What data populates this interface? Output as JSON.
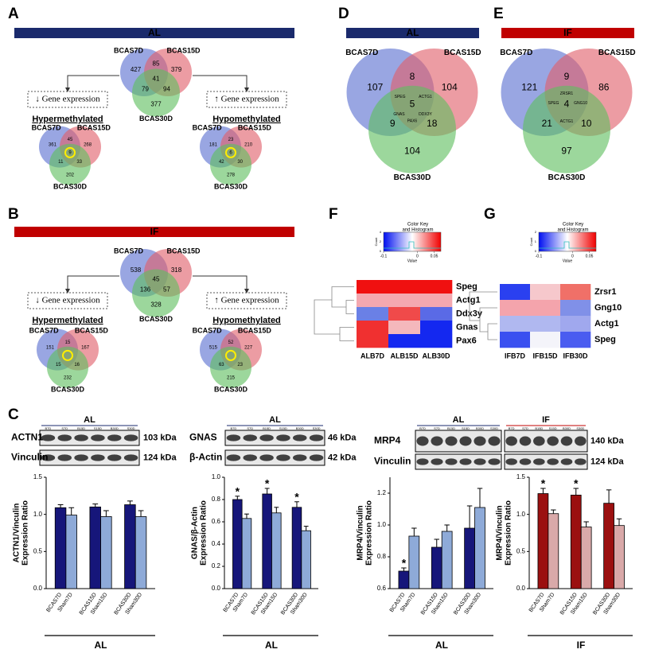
{
  "panel_labels": [
    "A",
    "B",
    "C",
    "D",
    "E",
    "F",
    "G"
  ],
  "headers": [
    {
      "text": "AL",
      "color": "#1a2a6c"
    },
    {
      "text": "IF",
      "color": "#c00000"
    },
    {
      "text": "AL",
      "color": "#1a2a6c"
    },
    {
      "text": "IF",
      "color": "#c00000"
    }
  ],
  "venn_colors": [
    "#5b6fd0",
    "#e0606a",
    "#5fbf5f"
  ],
  "highlight_color": "#ffee00",
  "venns": [
    {
      "sets": [
        "BCAS7D",
        "BCAS15D",
        "BCAS30D"
      ],
      "counts": [
        427,
        85,
        379,
        41,
        79,
        94,
        377
      ]
    },
    {
      "sets": [
        "BCAS7D",
        "BCAS15D",
        "BCAS30D"
      ],
      "counts": [
        361,
        45,
        268,
        9,
        11,
        33,
        202
      ],
      "highlight": true
    },
    {
      "sets": [
        "BCAS7D",
        "BCAS15D",
        "BCAS30D"
      ],
      "counts": [
        181,
        23,
        210,
        6,
        42,
        30,
        278
      ],
      "highlight": true
    },
    {
      "sets": [
        "BCAS7D",
        "BCAS15D",
        "BCAS30D"
      ],
      "counts": [
        538,
        null,
        318,
        45,
        136,
        57,
        328
      ]
    },
    {
      "sets": [
        "BCAS7D",
        "BCAS15D",
        "BCAS30D"
      ],
      "counts": [
        151,
        15,
        167,
        null,
        15,
        16,
        232
      ],
      "highlight": true
    },
    {
      "sets": [
        "BCAS7D",
        "BCAS15D",
        "BCAS30D"
      ],
      "counts": [
        515,
        52,
        227,
        null,
        63,
        23,
        215
      ],
      "highlight": true
    },
    {
      "sets": [
        "BCAS7D",
        "BCAS15D",
        "BCAS30D"
      ],
      "counts": [
        107,
        8,
        104,
        5,
        9,
        18,
        104
      ],
      "genes": [
        "SPEG",
        "ACTG1",
        "GNAS",
        "DDX3Y",
        "PAX6"
      ]
    },
    {
      "sets": [
        "BCAS7D",
        "BCAS15D",
        "BCAS30D"
      ],
      "counts": [
        121,
        9,
        86,
        4,
        21,
        10,
        97
      ],
      "genes": [
        "ZRSR1",
        "SPEG",
        "GNG10",
        "ACTG1"
      ]
    }
  ],
  "methylation": [
    {
      "box": "↓ Gene expression",
      "label": "Hypermethylated"
    },
    {
      "box": "↑ Gene expression",
      "label": "Hypomethylated"
    },
    {
      "box": "↓ Gene expression",
      "label": "Hypermethylated"
    },
    {
      "box": "↑ Gene expression",
      "label": "Hypomethylated"
    }
  ],
  "heatmaps": [
    {
      "key_title": [
        "Color Key",
        "and Histogram"
      ],
      "key_xticks": [
        -0.1,
        0,
        0.05
      ],
      "key_xlabel": "Value",
      "key_ylabel": "Count",
      "key_yticks": [
        0,
        2,
        4
      ],
      "rows": [
        "Speg",
        "Actg1",
        "Ddx3y",
        "Gnas",
        "Pax6"
      ],
      "columns": [
        "ALB7D",
        "ALB15D",
        "ALB30D"
      ],
      "cells": [
        [
          "#f01010",
          "#f01010",
          "#f01010"
        ],
        [
          "#f4a8b0",
          "#f4a8b0",
          "#f4a8b0"
        ],
        [
          "#6a80e6",
          "#f04a4a",
          "#5a6ae6"
        ],
        [
          "#f03030",
          "#f4b8bc",
          "#1428f0"
        ],
        [
          "#f03030",
          "#1428f0",
          "#1428f0"
        ]
      ]
    },
    {
      "key_title": [
        "Color Key",
        "and Histogram"
      ],
      "key_xticks": [
        -0.1,
        0,
        0.05
      ],
      "key_xlabel": "Value",
      "key_ylabel": "Count",
      "key_yticks": [
        0,
        1,
        2
      ],
      "rows": [
        "Zrsr1",
        "Gng10",
        "Actg1",
        "Speg"
      ],
      "columns": [
        "IFB7D",
        "IFB15D",
        "IFB30D"
      ],
      "cells": [
        [
          "#2a40f0",
          "#f6c8cc",
          "#f07068"
        ],
        [
          "#f4a4ac",
          "#f4a4ac",
          "#8090e8"
        ],
        [
          "#b0b8f0",
          "#b0b8f0",
          "#a0a8ee"
        ],
        [
          "#3a50f0",
          "#f4f4fa",
          "#4a5cf0"
        ]
      ]
    }
  ],
  "blots": [
    {
      "headers": [
        {
          "text": "AL",
          "color": "#1a2a6c"
        }
      ],
      "rows": [
        {
          "label": "ACTN1",
          "kda": "103 kDa"
        },
        {
          "label": "Vinculin",
          "kda": "124 kDa"
        }
      ],
      "lanes": [
        [
          "B7D",
          "S7D",
          "B15D",
          "S15D",
          "B30D",
          "S30D"
        ]
      ]
    },
    {
      "headers": [
        {
          "text": "AL",
          "color": "#1a2a6c"
        }
      ],
      "rows": [
        {
          "label": "GNAS",
          "kda": "46 kDa"
        },
        {
          "label": "β-Actin",
          "kda": "42 kDa"
        }
      ],
      "lanes": [
        [
          "B7D",
          "S7D",
          "B15D",
          "S15D",
          "B30D",
          "S30D"
        ]
      ]
    },
    {
      "headers": [
        {
          "text": "AL",
          "color": "#1a2a6c"
        },
        {
          "text": "IF",
          "color": "#c00000"
        }
      ],
      "rows": [
        {
          "label": "MRP4",
          "kda": "140 kDa"
        },
        {
          "label": "Vinculin",
          "kda": "124 kDa"
        }
      ],
      "lanes": [
        [
          "B7D",
          "S7D",
          "B15D",
          "S15D",
          "B30D",
          "S30D"
        ],
        [
          "B7D",
          "S7D",
          "B15D",
          "S15D",
          "B30D",
          "S30D"
        ]
      ]
    }
  ],
  "chart_data": [
    {
      "type": "bar",
      "ylabel": [
        "ACTN1/Vinculin",
        "Expression Ratio"
      ],
      "categories": [
        "BCAS7D",
        "Sham7D",
        "BCAS15D",
        "Sham15D",
        "BCAS30D",
        "Sham30D"
      ],
      "values": [
        1.09,
        0.99,
        1.1,
        0.97,
        1.13,
        0.97
      ],
      "errors": [
        0.04,
        0.1,
        0.04,
        0.08,
        0.05,
        0.08
      ],
      "colors": [
        "#16167a",
        "#8eaad8",
        "#16167a",
        "#8eaad8",
        "#16167a",
        "#8eaad8"
      ],
      "ylim": [
        0,
        1.5
      ],
      "yticks": [
        {
          "value": 0,
          "label": "0.0"
        },
        0.5,
        {
          "value": 1,
          "label": "1.0"
        },
        1.5
      ],
      "group_label": "AL",
      "group_color": "#1a2a6c",
      "annotations": []
    },
    {
      "type": "bar",
      "ylabel": [
        "GNAS/β-Actin",
        "Expression Ratio"
      ],
      "categories": [
        "BCAS7D",
        "Sham7D",
        "BCAS15D",
        "Sham15D",
        "BCAS30D",
        "Sham30D"
      ],
      "values": [
        0.8,
        0.63,
        0.85,
        0.68,
        0.73,
        0.52
      ],
      "errors": [
        0.03,
        0.04,
        0.05,
        0.05,
        0.05,
        0.04
      ],
      "colors": [
        "#16167a",
        "#8eaad8",
        "#16167a",
        "#8eaad8",
        "#16167a",
        "#8eaad8"
      ],
      "ylim": [
        0,
        1
      ],
      "yticks": [
        {
          "value": 0,
          "label": "0.0"
        },
        0.2,
        0.4,
        0.6,
        0.8,
        {
          "value": 1,
          "label": "1.0"
        }
      ],
      "group_label": "AL",
      "group_color": "#1a2a6c",
      "annotations": [
        {
          "text": "*",
          "category": "BCAS7D"
        },
        {
          "text": "*",
          "category": "BCAS15D"
        },
        {
          "text": "*",
          "category": "BCAS30D"
        }
      ]
    },
    {
      "type": "bar",
      "ylabel": [
        "MRP4/Vinculin",
        "Expression Ratio"
      ],
      "categories": [
        "BCAS7D",
        "Sham7D",
        "BCAS15D",
        "Sham15D",
        "BCAS30D",
        "Sham30D"
      ],
      "values": [
        0.71,
        0.93,
        0.86,
        0.96,
        0.98,
        1.11
      ],
      "errors": [
        0.02,
        0.05,
        0.05,
        0.04,
        0.14,
        0.12
      ],
      "colors": [
        "#16167a",
        "#8eaad8",
        "#16167a",
        "#8eaad8",
        "#16167a",
        "#8eaad8"
      ],
      "ylim": [
        0.6,
        1.3
      ],
      "yticks": [
        0.6,
        0.8,
        {
          "value": 1,
          "label": "1.0"
        },
        1.2
      ],
      "group_label": "AL",
      "group_color": "#1a2a6c",
      "annotations": [
        {
          "text": "*",
          "category": "BCAS7D"
        }
      ]
    },
    {
      "type": "bar",
      "ylabel": [
        "MRP4/Vinculin",
        "Expression Ratio"
      ],
      "categories": [
        "BCAS7D",
        "Sham7D",
        "BCAS15D",
        "Sham15D",
        "BCAS30D",
        "Sham30D"
      ],
      "values": [
        1.28,
        1.01,
        1.26,
        0.83,
        1.15,
        0.85
      ],
      "errors": [
        0.07,
        0.05,
        0.09,
        0.07,
        0.18,
        0.09
      ],
      "colors": [
        "#9b1010",
        "#d9a9a9",
        "#9b1010",
        "#d9a9a9",
        "#9b1010",
        "#d9a9a9"
      ],
      "ylim": [
        0,
        1.5
      ],
      "yticks": [
        {
          "value": 0,
          "label": "0.0"
        },
        0.5,
        {
          "value": 1,
          "label": "1.0"
        },
        1.5
      ],
      "group_label": "IF",
      "group_color": "#c00000",
      "annotations": [
        {
          "text": "*",
          "category": "BCAS7D"
        },
        {
          "text": "*",
          "category": "BCAS15D"
        }
      ]
    }
  ]
}
